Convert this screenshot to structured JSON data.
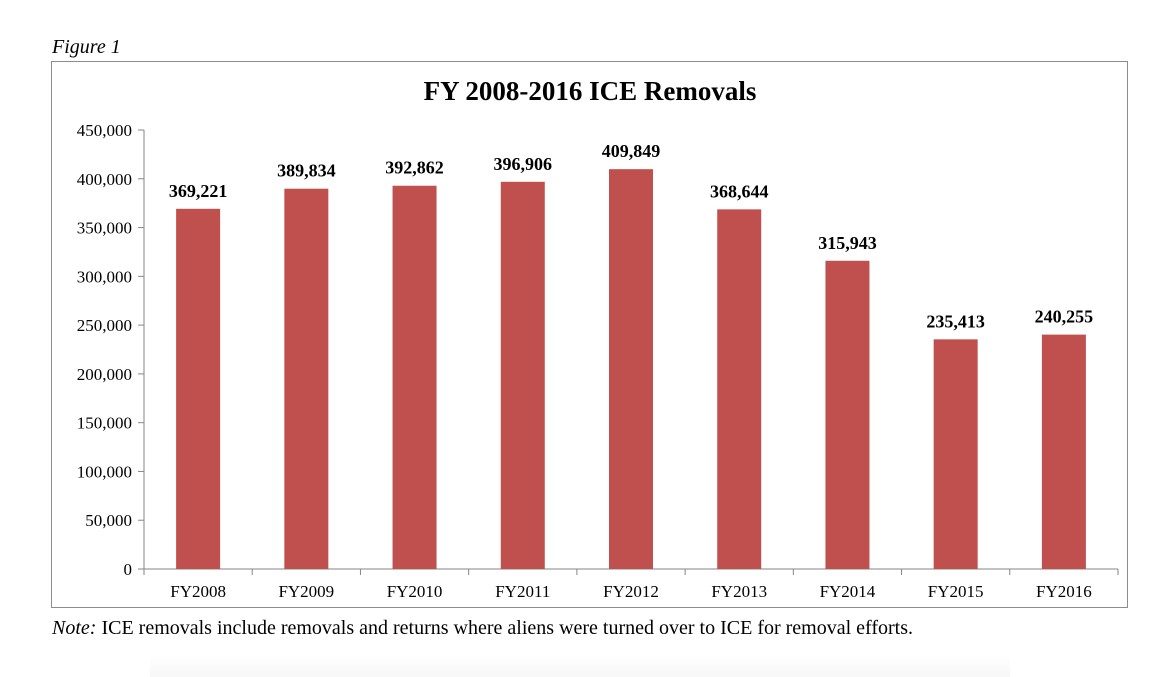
{
  "figure_label": "Figure 1",
  "note": {
    "prefix": "Note:",
    "text": " ICE removals include removals and returns where aliens were turned over to ICE for removal efforts."
  },
  "chart_data": {
    "type": "bar",
    "title": "FY 2008-2016 ICE Removals",
    "xlabel": "",
    "ylabel": "",
    "categories": [
      "FY2008",
      "FY2009",
      "FY2010",
      "FY2011",
      "FY2012",
      "FY2013",
      "FY2014",
      "FY2015",
      "FY2016"
    ],
    "values": [
      369221,
      389834,
      392862,
      396906,
      409849,
      368644,
      315943,
      235413,
      240255
    ],
    "data_labels": [
      "369,221",
      "389,834",
      "392,862",
      "396,906",
      "409,849",
      "368,644",
      "315,943",
      "235,413",
      "240,255"
    ],
    "ylim": [
      0,
      450000
    ],
    "yticks": [
      0,
      50000,
      100000,
      150000,
      200000,
      250000,
      300000,
      350000,
      400000,
      450000
    ],
    "ytick_labels": [
      "0",
      "50,000",
      "100,000",
      "150,000",
      "200,000",
      "250,000",
      "300,000",
      "350,000",
      "400,000",
      "450,000"
    ],
    "grid": false,
    "legend": "none",
    "bar_color": "#c0504d"
  }
}
